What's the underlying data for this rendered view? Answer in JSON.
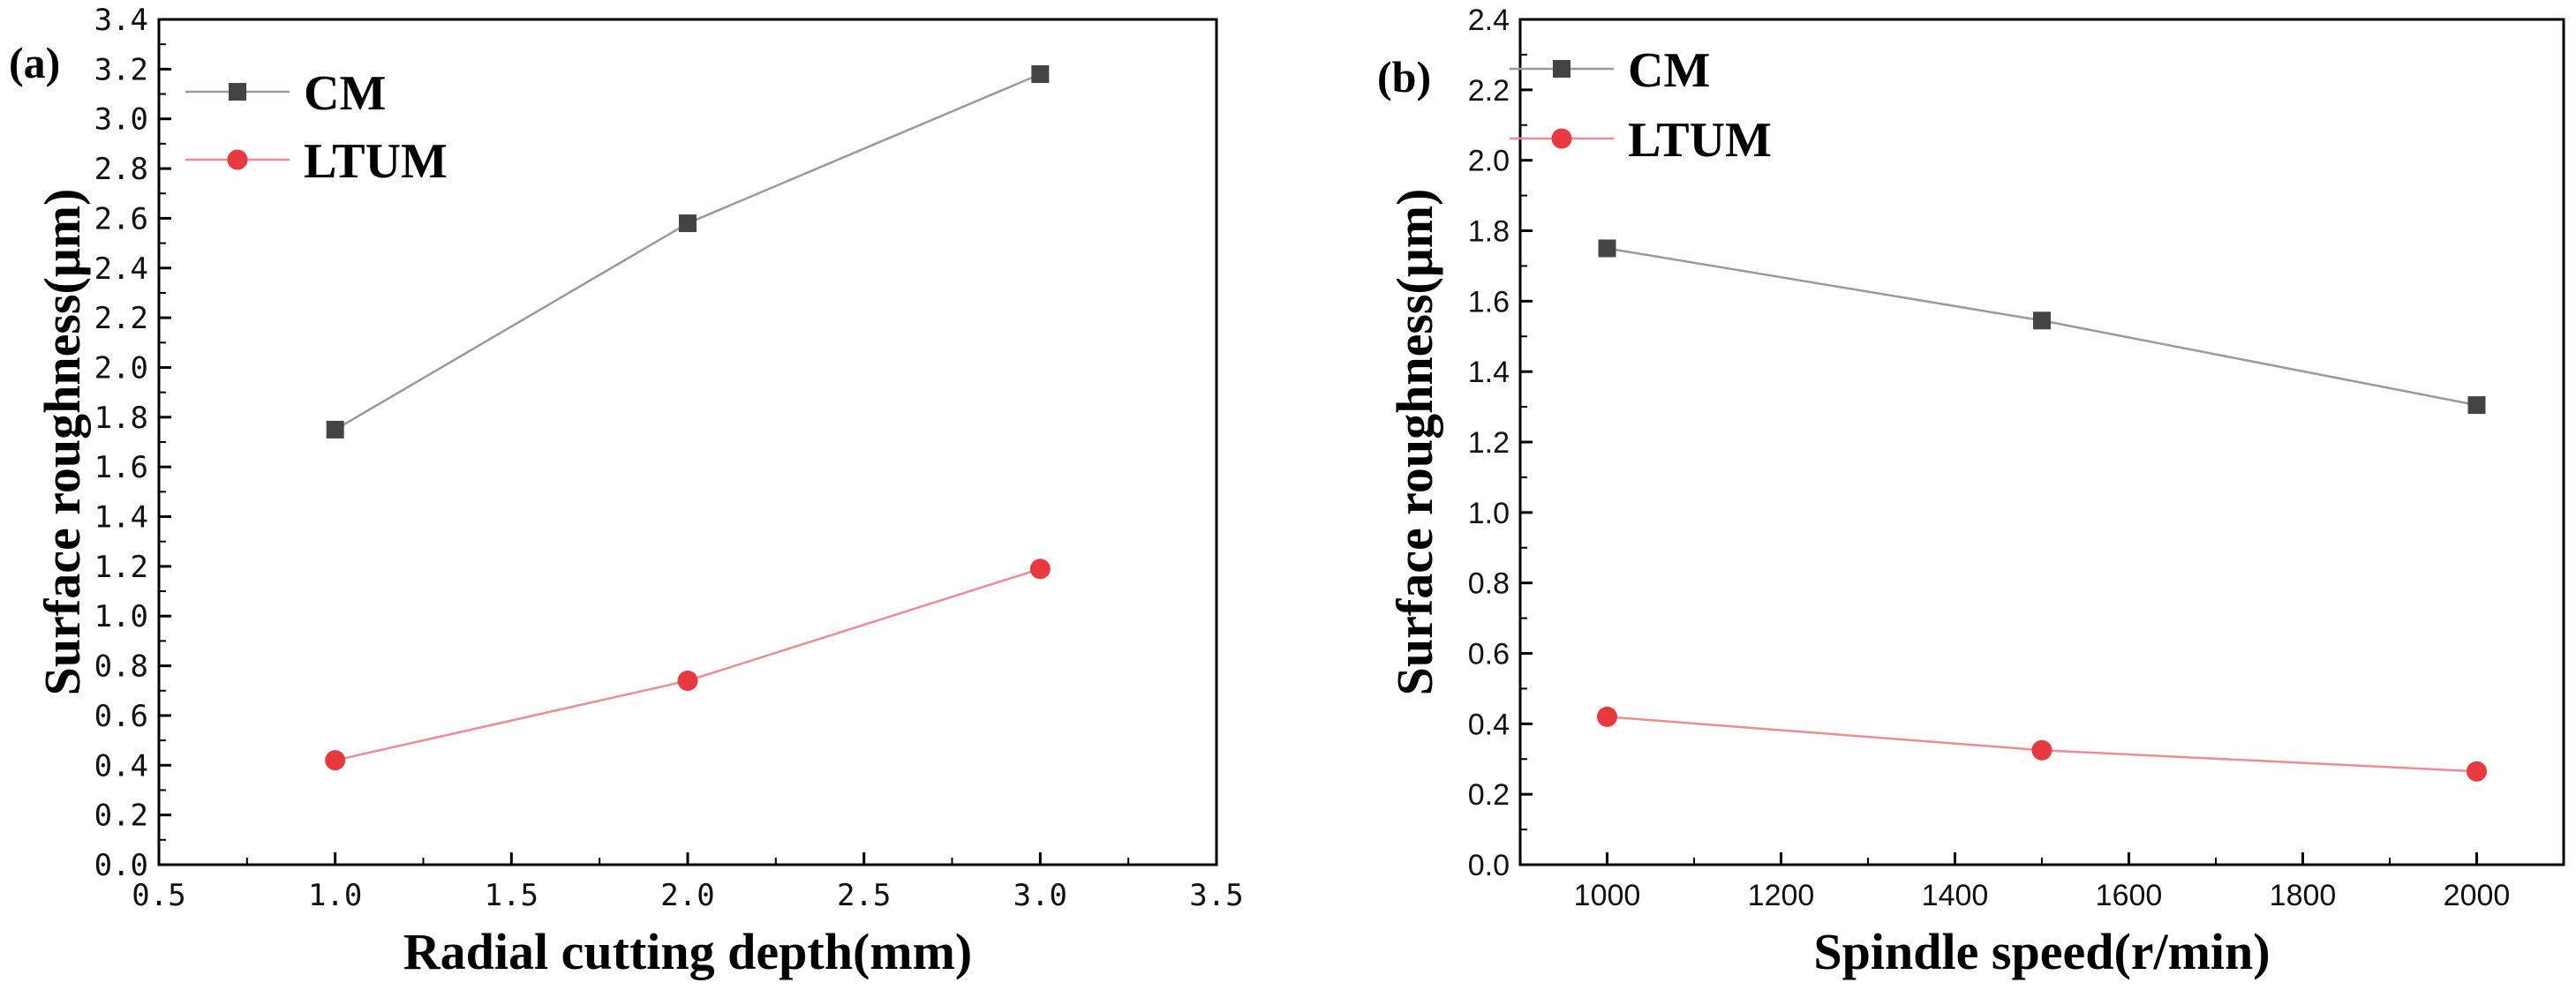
{
  "chart_data": [
    {
      "type": "line",
      "panel_label": "(a)",
      "xlabel": "Radial cutting depth(mm)",
      "ylabel": "Surface roughness(μm)",
      "xlim": [
        0.5,
        3.5
      ],
      "ylim": [
        0.0,
        3.4
      ],
      "xticks": [
        "0.5",
        "1.0",
        "1.5",
        "2.0",
        "2.5",
        "3.0",
        "3.5"
      ],
      "yticks": [
        "0.0",
        "0.2",
        "0.4",
        "0.6",
        "0.8",
        "1.0",
        "1.2",
        "1.4",
        "1.6",
        "1.8",
        "2.0",
        "2.2",
        "2.4",
        "2.6",
        "2.8",
        "3.0",
        "3.2",
        "3.4"
      ],
      "legend_position": "top-left",
      "grid": false,
      "x": [
        1.0,
        2.0,
        3.0
      ],
      "series": [
        {
          "name": "CM",
          "values": [
            1.75,
            2.58,
            3.18
          ],
          "marker": "square",
          "color": "#444444",
          "line_color": "#9a9a9a"
        },
        {
          "name": "LTUM",
          "values": [
            0.42,
            0.74,
            1.19
          ],
          "marker": "circle",
          "color": "#e8393f",
          "line_color": "#ef8c8f"
        }
      ]
    },
    {
      "type": "line",
      "panel_label": "(b)",
      "xlabel": "Spindle speed(r/min)",
      "ylabel": "Surface roughness(μm)",
      "xlim": [
        900,
        2100
      ],
      "ylim": [
        0.0,
        2.4
      ],
      "xticks": [
        "1000",
        "1200",
        "1400",
        "1600",
        "1800",
        "2000"
      ],
      "yticks": [
        "0.0",
        "0.2",
        "0.4",
        "0.6",
        "0.8",
        "1.0",
        "1.2",
        "1.4",
        "1.6",
        "1.8",
        "2.0",
        "2.2",
        "2.4"
      ],
      "legend_position": "top-left",
      "grid": false,
      "x": [
        1000,
        1500,
        2000
      ],
      "series": [
        {
          "name": "CM",
          "values": [
            1.75,
            1.545,
            1.305
          ],
          "marker": "square",
          "color": "#444444",
          "line_color": "#9a9a9a"
        },
        {
          "name": "LTUM",
          "values": [
            0.42,
            0.325,
            0.265
          ],
          "marker": "circle",
          "color": "#e8393f",
          "line_color": "#ef8c8f"
        }
      ]
    }
  ]
}
